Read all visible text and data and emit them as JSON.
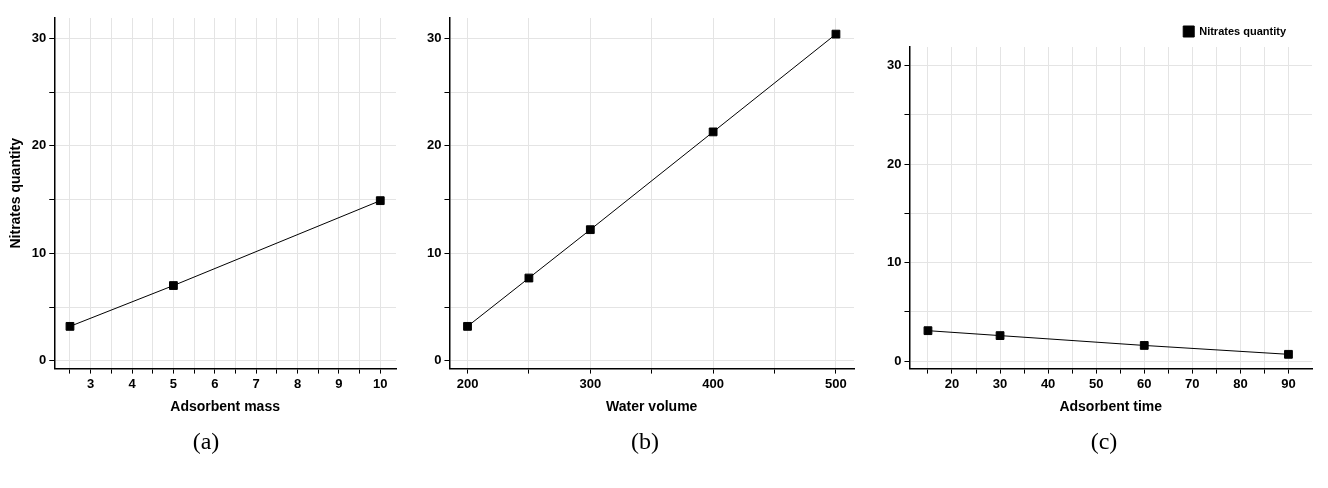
{
  "chart_data": [
    {
      "type": "line",
      "xlabel": "Adsorbent mass",
      "ylabel": "Nitrates quantity",
      "annotations": [
        "(a)"
      ],
      "x": [
        2.5,
        5,
        10
      ],
      "series": [
        {
          "color": "#000000",
          "values": [
            3.2,
            7.0,
            14.9
          ]
        }
      ],
      "xlim": [
        2.12,
        10.38
      ],
      "xticks": [
        {
          "value": 2.5,
          "label": null
        },
        3,
        {
          "value": 3.5,
          "label": null
        },
        4,
        {
          "value": 4.5,
          "label": null
        },
        5,
        {
          "value": 5.5,
          "label": null
        },
        6,
        {
          "value": 6.5,
          "label": null
        },
        7,
        {
          "value": 7.5,
          "label": null
        },
        8,
        {
          "value": 8.5,
          "label": null
        },
        9,
        {
          "value": 9.5,
          "label": null
        },
        10
      ],
      "ylim": [
        -0.73,
        31.9
      ],
      "yticks": [
        0,
        {
          "value": 5,
          "label": null
        },
        10,
        {
          "value": 15,
          "label": null
        },
        20,
        {
          "value": 25,
          "label": null
        },
        30
      ],
      "grid": true,
      "marker": "square",
      "line_style": "solid"
    },
    {
      "type": "line",
      "xlabel": "Water volume",
      "annotations": [
        "(b)"
      ],
      "x": [
        200,
        250,
        300,
        400,
        500
      ],
      "series": [
        {
          "color": "#000000",
          "values": [
            3.2,
            7.7,
            12.2,
            21.3,
            30.4
          ]
        }
      ],
      "xlim": [
        185.3,
        514.7
      ],
      "xticks": [
        200,
        {
          "value": 250,
          "label": null
        },
        300,
        {
          "value": 350,
          "label": null
        },
        400,
        {
          "value": 450,
          "label": null
        },
        500
      ],
      "ylim": [
        -0.73,
        31.9
      ],
      "yticks": [
        0,
        {
          "value": 5,
          "label": null
        },
        10,
        {
          "value": 15,
          "label": null
        },
        20,
        {
          "value": 25,
          "label": null
        },
        30
      ],
      "grid": true,
      "marker": "square",
      "line_style": "solid"
    },
    {
      "type": "line",
      "xlabel": "Adsorbent time",
      "annotations": [
        "(c)"
      ],
      "x": [
        15,
        30,
        60,
        90
      ],
      "series": [
        {
          "name": "Nitrates quantity",
          "color": "#000000",
          "values": [
            3.1,
            2.6,
            1.6,
            0.7
          ]
        }
      ],
      "xlim": [
        11.15,
        94.9
      ],
      "xticks": [
        {
          "value": 15,
          "label": null
        },
        20,
        {
          "value": 25,
          "label": null
        },
        30,
        {
          "value": 35,
          "label": null
        },
        40,
        {
          "value": 45,
          "label": null
        },
        50,
        {
          "value": 55,
          "label": null
        },
        60,
        {
          "value": 65,
          "label": null
        },
        70,
        {
          "value": 75,
          "label": null
        },
        80,
        {
          "value": 85,
          "label": null
        },
        90
      ],
      "ylim": [
        -0.75,
        31.9
      ],
      "yticks": [
        0,
        {
          "value": 5,
          "label": null
        },
        10,
        {
          "value": 15,
          "label": null
        },
        20,
        {
          "value": 25,
          "label": null
        },
        30
      ],
      "grid": true,
      "legend": "top right",
      "marker": "square",
      "line_style": "solid"
    }
  ]
}
